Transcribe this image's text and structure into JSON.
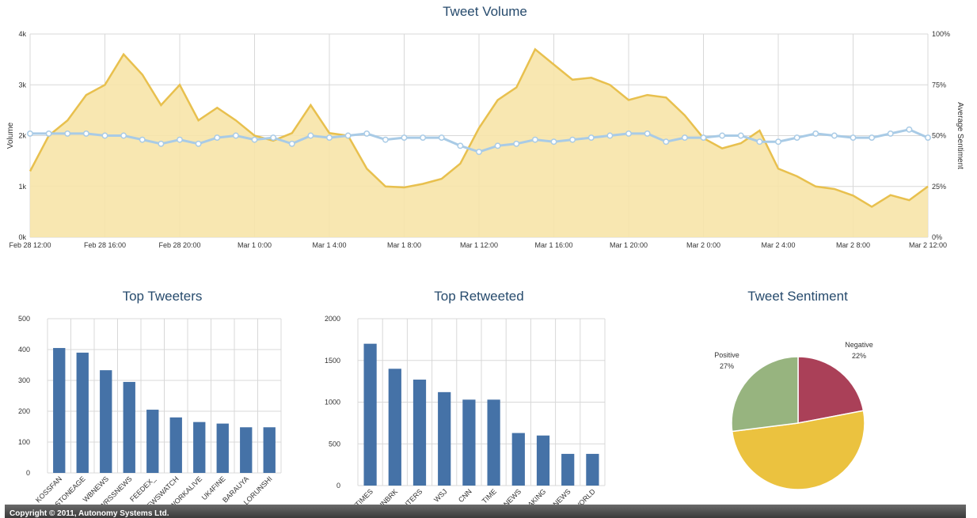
{
  "footer": {
    "copyright": "Copyright © 2011, Autonomy Systems Ltd."
  },
  "chart_data": [
    {
      "type": "area",
      "title": "Tweet Volume",
      "ylabel": "Volume",
      "y2label": "Average Sentiment",
      "x_tick_labels": [
        "Feb 28 12:00",
        "Feb 28 16:00",
        "Feb 28 20:00",
        "Mar 1 0:00",
        "Mar 1 4:00",
        "Mar 1 8:00",
        "Mar 1 12:00",
        "Mar 1 16:00",
        "Mar 1 20:00",
        "Mar 2 0:00",
        "Mar 2 4:00",
        "Mar 2 8:00",
        "Mar 2 12:00"
      ],
      "y_tick_labels": [
        "0k",
        "1k",
        "2k",
        "3k",
        "4k"
      ],
      "y2_tick_labels": [
        "0%",
        "25%",
        "50%",
        "75%",
        "100%"
      ],
      "ylim": [
        0,
        4000
      ],
      "y2lim": [
        0,
        100
      ],
      "x_hours": [
        0,
        1,
        2,
        3,
        4,
        5,
        6,
        7,
        8,
        9,
        10,
        11,
        12,
        13,
        14,
        15,
        16,
        17,
        18,
        19,
        20,
        21,
        22,
        23,
        24,
        25,
        26,
        27,
        28,
        29,
        30,
        31,
        32,
        33,
        34,
        35,
        36,
        37,
        38,
        39,
        40,
        41,
        42,
        43,
        44,
        45,
        46,
        47,
        48
      ],
      "colors": {
        "volume_fill": "#f7e4a8",
        "volume_line": "#e8c04e",
        "sentiment_line": "#a9cbe6",
        "sentiment_marker": "#ffffff"
      },
      "series": [
        {
          "values": [
            1300,
            2000,
            2300,
            2800,
            3000,
            3600,
            3200,
            2600,
            3000,
            2300,
            2550,
            2300,
            2000,
            1900,
            2050,
            2600,
            2050,
            2000,
            1350,
            1000,
            980,
            1050,
            1150,
            1450,
            2150,
            2700,
            2950,
            3700,
            3400,
            3100,
            3140,
            3000,
            2700,
            2800,
            2750,
            2400,
            1950,
            1750,
            1850,
            2100,
            1350,
            1200,
            1000,
            950,
            820,
            600,
            830,
            730,
            1000
          ]
        },
        {
          "values": [
            51,
            51,
            51,
            51,
            50,
            50,
            48,
            46,
            48,
            46,
            49,
            50,
            48,
            49,
            46,
            50,
            49,
            50,
            51,
            48,
            49,
            49,
            49,
            45,
            42,
            45,
            46,
            48,
            47,
            48,
            49,
            50,
            51,
            51,
            47,
            49,
            49,
            50,
            50,
            47,
            47,
            49,
            51,
            50,
            49,
            49,
            51,
            53,
            49
          ]
        }
      ]
    },
    {
      "type": "bar",
      "title": "Top Tweeters",
      "categories": [
        "KOSSFAN",
        "STONEAGE",
        "WBNEWS",
        "WRSSNEWS",
        "FEEDEX_",
        "NEWSWATCH",
        "WORKALIVE",
        "UK4FINE",
        "BARAUYA",
        "LORUNSHI"
      ],
      "values": [
        405,
        390,
        333,
        295,
        205,
        180,
        165,
        160,
        148,
        148
      ],
      "ylim": [
        0,
        500
      ],
      "y_tick_labels": [
        "0",
        "100",
        "200",
        "300",
        "400",
        "500"
      ],
      "colors": {
        "bar": "#4572a7"
      }
    },
    {
      "type": "bar",
      "title": "Top Retweeted",
      "categories": [
        "NYTIMES",
        "CNNBRK",
        "REUTERS",
        "WSJ",
        "CNN",
        "TIME",
        "BBCNEWS",
        "BREAKING",
        "ABCNEWS",
        "BBCWORLD"
      ],
      "values": [
        1700,
        1400,
        1270,
        1120,
        1030,
        1030,
        630,
        600,
        380,
        380
      ],
      "ylim": [
        0,
        2000
      ],
      "y_tick_labels": [
        "0",
        "500",
        "1000",
        "1500",
        "2000"
      ],
      "colors": {
        "bar": "#4572a7"
      }
    },
    {
      "type": "pie",
      "title": "Tweet Sentiment",
      "slices": [
        {
          "name": "Negative",
          "value": 22,
          "label": "22%",
          "color": "#aa4058"
        },
        {
          "name": "",
          "value": 51,
          "label": "",
          "color": "#ebc23f"
        },
        {
          "name": "Positive",
          "value": 27,
          "label": "27%",
          "color": "#97b47f"
        }
      ]
    }
  ]
}
